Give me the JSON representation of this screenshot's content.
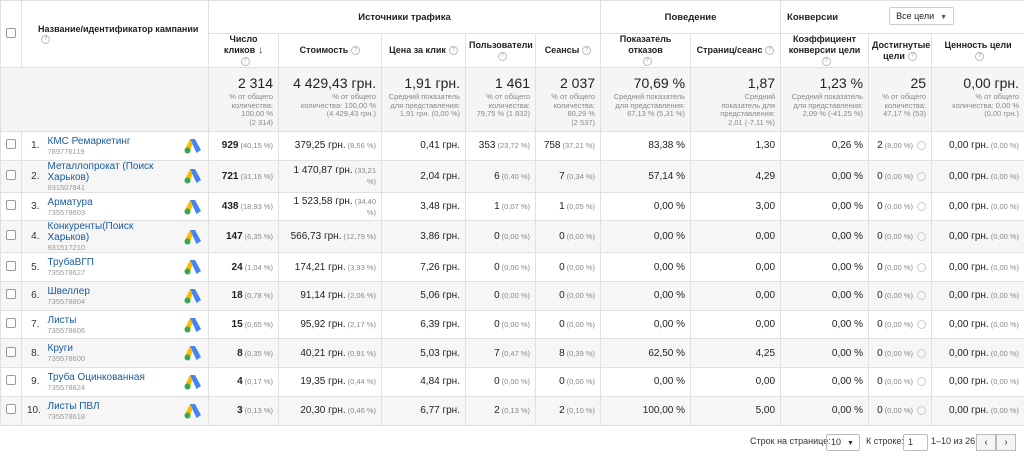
{
  "header": {
    "campaign_col": "Название/идентификатор кампании",
    "group_traffic": "Источники трафика",
    "group_behavior": "Поведение",
    "group_conversions": "Конверсии",
    "goal_select": "Все цели",
    "cols": {
      "clicks": "Число кликов",
      "cost": "Стоимость",
      "cpc": "Цена за клик",
      "users": "Пользователи",
      "sessions": "Сеансы",
      "bounce": "Показатель отказов",
      "pages": "Страниц/сеанс",
      "conv_rate_1": "Коэффициент",
      "conv_rate_2": "конверсии цели",
      "goals_1": "Достигнутые",
      "goals_2": "цели",
      "goal_value": "Ценность цели"
    }
  },
  "totals": {
    "clicks": {
      "big": "2 314",
      "s1": "% от общего",
      "s2": "количества:",
      "s3": "100,00 %",
      "s4": "(2 314)"
    },
    "cost": {
      "big": "4 429,43 грн.",
      "s1": "% от общего",
      "s2": "количества: 100,00 %",
      "s3": "(4 429,43 грн.)"
    },
    "cpc": {
      "big": "1,91 грн.",
      "s1": "Средний показатель",
      "s2": "для представления:",
      "s3": "1,91 грн. (0,00 %)"
    },
    "users": {
      "big": "1 461",
      "s1": "% от общего",
      "s2": "количества:",
      "s3": "79,75 % (1 832)"
    },
    "sessions": {
      "big": "2 037",
      "s1": "% от общего",
      "s2": "количества:",
      "s3": "80,29 %",
      "s4": "(2 537)"
    },
    "bounce": {
      "big": "70,69 %",
      "s1": "Средний показатель",
      "s2": "для представления:",
      "s3": "67,13 % (5,31 %)"
    },
    "pages": {
      "big": "1,87",
      "s1": "Средний",
      "s2": "показатель для",
      "s3": "представления:",
      "s4": "2,01 (-7,11 %)"
    },
    "conv_rate": {
      "big": "1,23 %",
      "s1": "Средний показатель",
      "s2": "для представления:",
      "s3": "2,09 % (-41,25 %)"
    },
    "goals": {
      "big": "25",
      "s1": "% от общего",
      "s2": "количества:",
      "s3": "47,17 % (53)"
    },
    "goal_value": {
      "big": "0,00 грн.",
      "s1": "% от общего",
      "s2": "количества: 0,00 %",
      "s3": "(0,00 грн.)"
    }
  },
  "rows": [
    {
      "n": "1.",
      "name": "КМС Ремаркетинг",
      "id": "789776119",
      "clicks": "929",
      "clicks_p": "(40,15 %)",
      "cost": "379,25 грн.",
      "cost_p": "(8,56 %)",
      "cpc": "0,41 грн.",
      "users": "353",
      "users_p": "(23,72 %)",
      "sessions": "758",
      "sessions_p": "(37,21 %)",
      "bounce": "83,38 %",
      "pages": "1,30",
      "conv": "0,26 %",
      "goals": "2",
      "goals_p": "(8,00 %)",
      "value": "0,00 грн.",
      "value_p": "(0,00 %)"
    },
    {
      "n": "2.",
      "name": "Металлопрокат (Поиск Харьков)",
      "id": "931507841",
      "clicks": "721",
      "clicks_p": "(31,16 %)",
      "cost": "1 470,87 грн.",
      "cost_p": "(33,21 %)",
      "cpc": "2,04 грн.",
      "users": "6",
      "users_p": "(0,40 %)",
      "sessions": "7",
      "sessions_p": "(0,34 %)",
      "bounce": "57,14 %",
      "pages": "4,29",
      "conv": "0,00 %",
      "goals": "0",
      "goals_p": "(0,00 %)",
      "value": "0,00 грн.",
      "value_p": "(0,00 %)"
    },
    {
      "n": "3.",
      "name": "Арматура",
      "id": "735578603",
      "clicks": "438",
      "clicks_p": "(18,93 %)",
      "cost": "1 523,58 грн.",
      "cost_p": "(34,40 %)",
      "cpc": "3,48 грн.",
      "users": "1",
      "users_p": "(0,07 %)",
      "sessions": "1",
      "sessions_p": "(0,05 %)",
      "bounce": "0,00 %",
      "pages": "3,00",
      "conv": "0,00 %",
      "goals": "0",
      "goals_p": "(0,00 %)",
      "value": "0,00 грн.",
      "value_p": "(0,00 %)"
    },
    {
      "n": "4.",
      "name": "Конкуренты(Поиск Харьков)",
      "id": "931517210",
      "clicks": "147",
      "clicks_p": "(6,35 %)",
      "cost": "566,73 грн.",
      "cost_p": "(12,79 %)",
      "cpc": "3,86 грн.",
      "users": "0",
      "users_p": "(0,00 %)",
      "sessions": "0",
      "sessions_p": "(0,00 %)",
      "bounce": "0,00 %",
      "pages": "0,00",
      "conv": "0,00 %",
      "goals": "0",
      "goals_p": "(0,00 %)",
      "value": "0,00 грн.",
      "value_p": "(0,00 %)"
    },
    {
      "n": "5.",
      "name": "ТрубаВГП",
      "id": "735578627",
      "clicks": "24",
      "clicks_p": "(1,04 %)",
      "cost": "174,21 грн.",
      "cost_p": "(3,93 %)",
      "cpc": "7,26 грн.",
      "users": "0",
      "users_p": "(0,00 %)",
      "sessions": "0",
      "sessions_p": "(0,00 %)",
      "bounce": "0,00 %",
      "pages": "0,00",
      "conv": "0,00 %",
      "goals": "0",
      "goals_p": "(0,00 %)",
      "value": "0,00 грн.",
      "value_p": "(0,00 %)"
    },
    {
      "n": "6.",
      "name": "Швеллер",
      "id": "735578804",
      "clicks": "18",
      "clicks_p": "(0,78 %)",
      "cost": "91,14 грн.",
      "cost_p": "(2,06 %)",
      "cpc": "5,06 грн.",
      "users": "0",
      "users_p": "(0,00 %)",
      "sessions": "0",
      "sessions_p": "(0,00 %)",
      "bounce": "0,00 %",
      "pages": "0,00",
      "conv": "0,00 %",
      "goals": "0",
      "goals_p": "(0,00 %)",
      "value": "0,00 грн.",
      "value_p": "(0,00 %)"
    },
    {
      "n": "7.",
      "name": "Листы",
      "id": "735578606",
      "clicks": "15",
      "clicks_p": "(0,65 %)",
      "cost": "95,92 грн.",
      "cost_p": "(2,17 %)",
      "cpc": "6,39 грн.",
      "users": "0",
      "users_p": "(0,00 %)",
      "sessions": "0",
      "sessions_p": "(0,00 %)",
      "bounce": "0,00 %",
      "pages": "0,00",
      "conv": "0,00 %",
      "goals": "0",
      "goals_p": "(0,00 %)",
      "value": "0,00 грн.",
      "value_p": "(0,00 %)"
    },
    {
      "n": "8.",
      "name": "Круги",
      "id": "735578600",
      "clicks": "8",
      "clicks_p": "(0,35 %)",
      "cost": "40,21 грн.",
      "cost_p": "(0,91 %)",
      "cpc": "5,03 грн.",
      "users": "7",
      "users_p": "(0,47 %)",
      "sessions": "8",
      "sessions_p": "(0,39 %)",
      "bounce": "62,50 %",
      "pages": "4,25",
      "conv": "0,00 %",
      "goals": "0",
      "goals_p": "(0,00 %)",
      "value": "0,00 грн.",
      "value_p": "(0,00 %)"
    },
    {
      "n": "9.",
      "name": "Труба Оцинкованная",
      "id": "735578624",
      "clicks": "4",
      "clicks_p": "(0,17 %)",
      "cost": "19,35 грн.",
      "cost_p": "(0,44 %)",
      "cpc": "4,84 грн.",
      "users": "0",
      "users_p": "(0,00 %)",
      "sessions": "0",
      "sessions_p": "(0,00 %)",
      "bounce": "0,00 %",
      "pages": "0,00",
      "conv": "0,00 %",
      "goals": "0",
      "goals_p": "(0,00 %)",
      "value": "0,00 грн.",
      "value_p": "(0,00 %)"
    },
    {
      "n": "10.",
      "name": "Листы ПВЛ",
      "id": "735578618",
      "clicks": "3",
      "clicks_p": "(0,13 %)",
      "cost": "20,30 грн.",
      "cost_p": "(0,46 %)",
      "cpc": "6,77 грн.",
      "users": "2",
      "users_p": "(0,13 %)",
      "sessions": "2",
      "sessions_p": "(0,10 %)",
      "bounce": "100,00 %",
      "pages": "5,00",
      "conv": "0,00 %",
      "goals": "0",
      "goals_p": "(0,00 %)",
      "value": "0,00 грн.",
      "value_p": "(0,00 %)"
    }
  ],
  "footer": {
    "rows_per_page_label": "Строк на странице:",
    "rows_per_page": "10",
    "goto_label": "К строке:",
    "goto_value": "1",
    "range": "1–10 из 26",
    "prev_icon": "‹",
    "next_icon": "›"
  },
  "colors": {
    "link": "#1a5b9c",
    "ads_blue": "#4285f4",
    "ads_yellow": "#fbbc04",
    "ads_green": "#34a853"
  }
}
